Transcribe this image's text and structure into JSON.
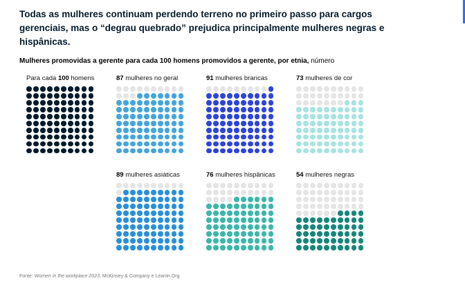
{
  "title": "Todas as mulheres continuam perdendo terreno no primeiro passo para cargos gerenciais, mas o “degrau quebrado” prejudica principalmente mulheres negras e hispânicas.",
  "subtitle": {
    "bold": "Mulheres promovidas a gerente para cada 100 homens promovidos a gerente, por etnia,",
    "unit": "número"
  },
  "footer": {
    "prefix": "Fonte: ",
    "source": "Women in the workplace 2023",
    "suffix": ", McKinsey & Company e LeanIn.Org"
  },
  "colors": {
    "title_navy": "#051c2c",
    "empty_dot": "#e5e5e5",
    "accent_blue": "#2e6bff"
  },
  "chart_data": {
    "type": "waffle",
    "title": "Mulheres promovidas a gerente para cada 100 homens promovidos a gerente, por etnia",
    "unit": "número",
    "grid_size": {
      "rows": 10,
      "cols": 10
    },
    "empty_dot_color": "#e5e5e5",
    "legend_position": "none",
    "grids": [
      {
        "id": "baseline-homens",
        "label_prefix": "Para cada ",
        "label_bold": "100",
        "label_suffix": " homens",
        "value": 100,
        "color": "#051c2c"
      },
      {
        "id": "mulheres-no-geral",
        "label_bold": "87",
        "label_suffix": " mulheres no geral",
        "value": 87,
        "color": "#41a6e0"
      },
      {
        "id": "mulheres-brancas",
        "label_bold": "91",
        "label_suffix": " mulheres brancas",
        "value": 91,
        "color": "#2b43e0"
      },
      {
        "id": "mulheres-de-cor",
        "label_bold": "73",
        "label_suffix": " mulheres de cor",
        "value": 73,
        "color": "#a5e4e0"
      },
      {
        "id": "mulheres-asiaticas",
        "label_bold": "89",
        "label_suffix": " mulheres asiáticas",
        "value": 89,
        "color": "#2590dc"
      },
      {
        "id": "mulheres-hispanicas",
        "label_bold": "76",
        "label_suffix": " mulheres hispânicas",
        "value": 76,
        "color": "#38b8ab"
      },
      {
        "id": "mulheres-negras",
        "label_bold": "54",
        "label_suffix": " mulheres negras",
        "value": 54,
        "color": "#12877a"
      }
    ]
  }
}
